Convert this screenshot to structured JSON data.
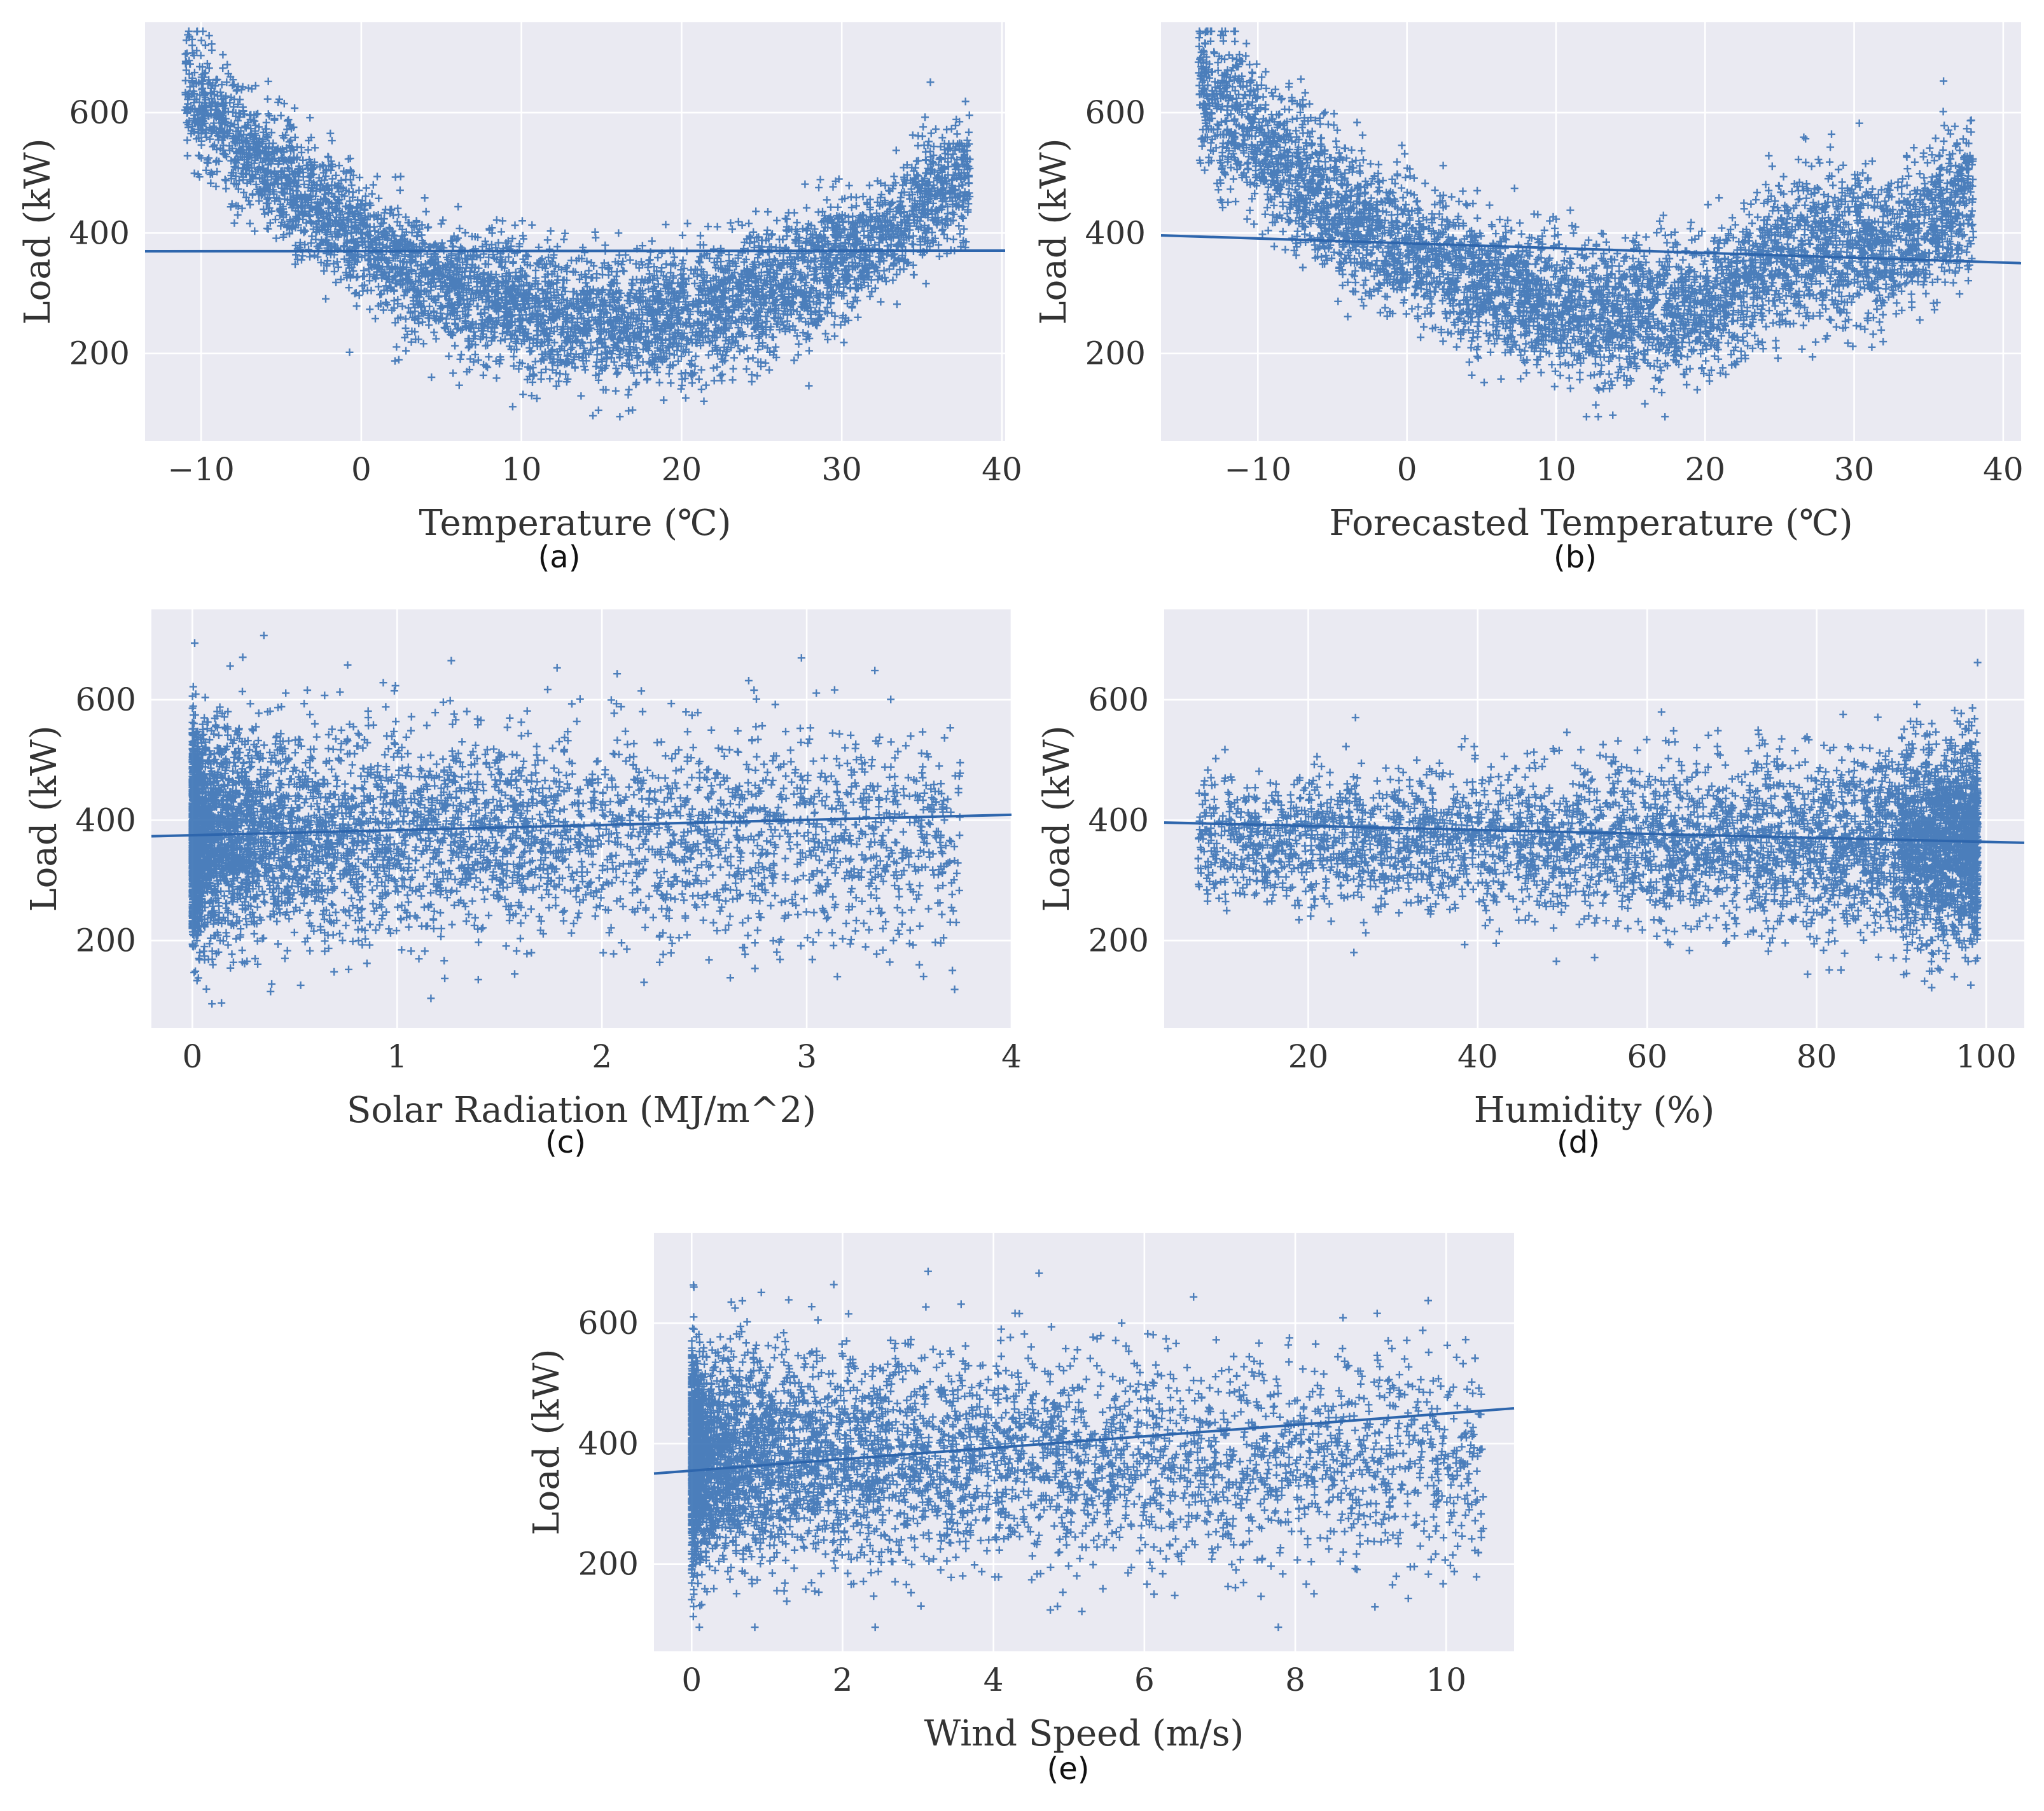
{
  "colors": {
    "background": "#ffffff",
    "panel": "#eaeaf2",
    "grid": "#ffffff",
    "points": "#3a72b5",
    "line": "#2e66ad",
    "text": "#333333"
  },
  "chart_data": [
    {
      "type": "scatter",
      "caption": "(a)",
      "xlabel": "Temperature (℃)",
      "ylabel": "Load (kW)",
      "xlim": [
        -13.5,
        40.2
      ],
      "ylim": [
        55,
        750
      ],
      "xticks": [
        -10,
        0,
        10,
        20,
        30,
        40
      ],
      "xtick_labels": [
        "−10",
        "0",
        "10",
        "20",
        "30",
        "40"
      ],
      "yticks": [
        200,
        400,
        600
      ],
      "ytick_labels": [
        "200",
        "400",
        "600"
      ],
      "grid": true,
      "legend": "none",
      "marker": "+",
      "pattern": "u",
      "x_range": [
        -11,
        38
      ],
      "x_center": 16,
      "y_min": 258,
      "curvature": 0.52,
      "spread_sd": 52,
      "regression": {
        "slope": 0.02,
        "intercept": 370
      }
    },
    {
      "type": "scatter",
      "caption": "(b)",
      "xlabel": "Forecasted Temperature (℃)",
      "ylabel": "Load (kW)",
      "xlim": [
        -16.5,
        41.2
      ],
      "ylim": [
        55,
        750
      ],
      "xticks": [
        -10,
        0,
        10,
        20,
        30,
        40
      ],
      "xtick_labels": [
        "−10",
        "0",
        "10",
        "20",
        "30",
        "40"
      ],
      "yticks": [
        200,
        400,
        600
      ],
      "ytick_labels": [
        "200",
        "400",
        "600"
      ],
      "grid": true,
      "legend": "none",
      "marker": "+",
      "pattern": "u2",
      "x_range": [
        -14,
        38
      ],
      "x_center": 16,
      "y_min": 265,
      "curvature": 0.42,
      "spread_sd": 58,
      "regression": {
        "slope": -0.8,
        "intercept": 383
      }
    },
    {
      "type": "scatter",
      "caption": "(c)",
      "xlabel": "Solar Radiation (MJ/m^2)",
      "ylabel": "Load (kW)",
      "xlim": [
        -0.2,
        4.0
      ],
      "ylim": [
        55,
        750
      ],
      "xticks": [
        0,
        1,
        2,
        3,
        4
      ],
      "xtick_labels": [
        "0",
        "1",
        "2",
        "3",
        "4"
      ],
      "yticks": [
        200,
        400,
        600
      ],
      "ytick_labels": [
        "200",
        "400",
        "600"
      ],
      "grid": true,
      "legend": "none",
      "marker": "+",
      "pattern": "skew",
      "x_range": [
        0,
        3.75
      ],
      "y_center": 375,
      "spread_sd": 85,
      "regression": {
        "slope": 8.5,
        "intercept": 375
      }
    },
    {
      "type": "scatter",
      "caption": "(d)",
      "xlabel": "Humidity (%)",
      "ylabel": "Load (kW)",
      "xlim": [
        3,
        104.5
      ],
      "ylim": [
        55,
        750
      ],
      "xticks": [
        20,
        40,
        60,
        80,
        100
      ],
      "xtick_labels": [
        "20",
        "40",
        "60",
        "80",
        "100"
      ],
      "yticks": [
        200,
        400,
        600
      ],
      "ytick_labels": [
        "200",
        "400",
        "600"
      ],
      "grid": true,
      "legend": "none",
      "marker": "+",
      "pattern": "rising",
      "x_range": [
        7,
        99
      ],
      "y_center": 365,
      "spread_sd": 80,
      "regression": {
        "slope": -0.33,
        "intercept": 397
      }
    },
    {
      "type": "scatter",
      "caption": "(e)",
      "xlabel": "Wind Speed (m/s)",
      "ylabel": "Load (kW)",
      "xlim": [
        -0.5,
        10.9
      ],
      "ylim": [
        55,
        750
      ],
      "xticks": [
        0,
        2,
        4,
        6,
        8,
        10
      ],
      "xtick_labels": [
        "0",
        "2",
        "4",
        "6",
        "8",
        "10"
      ],
      "yticks": [
        200,
        400,
        600
      ],
      "ytick_labels": [
        "200",
        "400",
        "600"
      ],
      "grid": true,
      "legend": "none",
      "marker": "+",
      "pattern": "skew",
      "x_range": [
        0,
        10.5
      ],
      "y_center": 375,
      "spread_sd": 85,
      "regression": {
        "slope": 9.5,
        "intercept": 355
      }
    }
  ]
}
